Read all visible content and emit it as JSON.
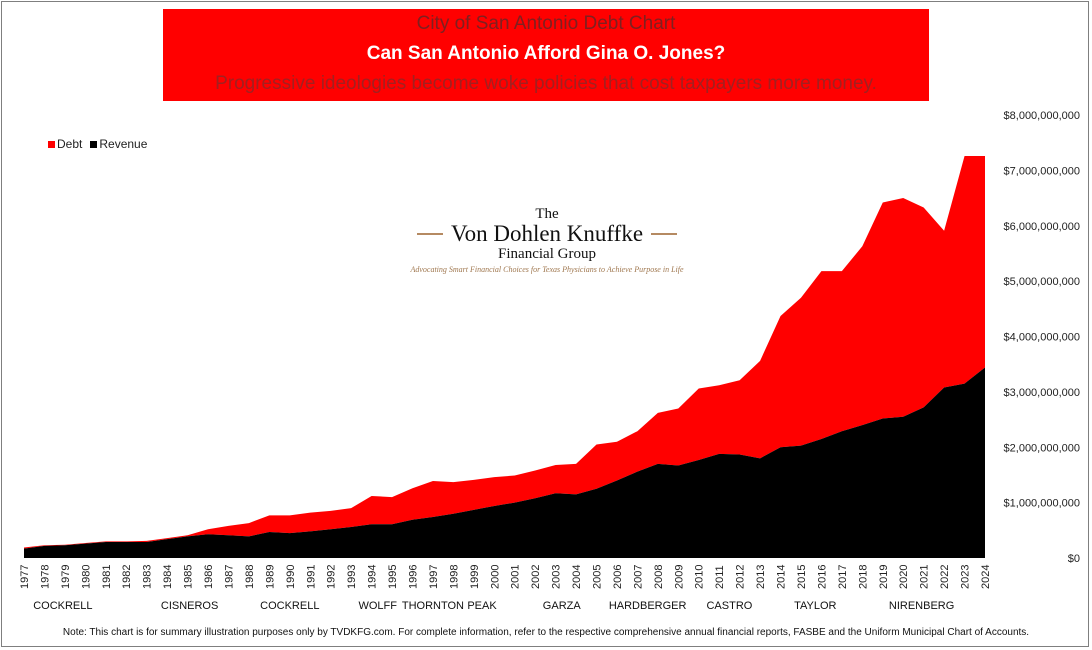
{
  "title_box": {
    "line1": "City of San Antonio Debt Chart",
    "line2": "Can San Antonio Afford Gina O. Jones?",
    "line3": "Progressive ideologies become woke policies that cost taxpayers more money."
  },
  "logo": {
    "line1": "The",
    "line2": "Von Dohlen Knuffke",
    "line3": "Financial Group",
    "tagline": "Advocating Smart Financial Choices for Texas Physicians to Achieve Purpose in Life"
  },
  "footnote": "Note: This chart is for summary illustration purposes only by TVDKFG.com. For complete information, refer to the respective comprehensive annual financial reports, FASBE and the Uniform Municipal Chart of Accounts.",
  "colors": {
    "debt": "#ff0000",
    "revenue": "#000000",
    "title_bg": "#ff0000"
  },
  "chart_data": {
    "type": "area",
    "stacked": true,
    "x": [
      1977,
      1978,
      1979,
      1980,
      1981,
      1982,
      1983,
      1984,
      1985,
      1986,
      1987,
      1988,
      1989,
      1990,
      1991,
      1992,
      1993,
      1994,
      1995,
      1996,
      1997,
      1998,
      1999,
      2000,
      2001,
      2002,
      2003,
      2004,
      2005,
      2006,
      2007,
      2008,
      2009,
      2010,
      2011,
      2012,
      2013,
      2014,
      2015,
      2016,
      2017,
      2018,
      2019,
      2020,
      2021,
      2022,
      2023,
      2024
    ],
    "x_tick_labels": [
      "1977",
      "1978",
      "1979",
      "1980",
      "1981",
      "1982",
      "1983",
      "1984",
      "1985",
      "1986",
      "1987",
      "1988",
      "1989",
      "1990",
      "1991",
      "1992",
      "1993",
      "1994",
      "1995",
      "1996",
      "1997",
      "1998",
      "1999",
      "2000",
      "2001",
      "2002",
      "2003",
      "2004",
      "2005",
      "2006",
      "2007",
      "2008",
      "2009",
      "2010",
      "2011",
      "2012",
      "2013",
      "2014",
      "2015",
      "2016",
      "2017",
      "2018",
      "2019",
      "2020",
      "2021",
      "2022",
      "2023",
      "2024"
    ],
    "series": [
      {
        "name": "Revenue",
        "color": "#000000",
        "values": [
          170000000,
          220000000,
          230000000,
          260000000,
          290000000,
          290000000,
          290000000,
          340000000,
          390000000,
          430000000,
          410000000,
          390000000,
          470000000,
          450000000,
          480000000,
          520000000,
          560000000,
          610000000,
          610000000,
          690000000,
          740000000,
          800000000,
          870000000,
          940000000,
          1000000000,
          1080000000,
          1170000000,
          1150000000,
          1250000000,
          1400000000,
          1560000000,
          1700000000,
          1670000000,
          1770000000,
          1880000000,
          1870000000,
          1800000000,
          2000000000,
          2030000000,
          2150000000,
          2290000000,
          2400000000,
          2520000000,
          2550000000,
          2720000000,
          3080000000,
          3150000000,
          3440000000
        ]
      },
      {
        "name": "Debt",
        "color": "#ff0000",
        "values": [
          20000000,
          10000000,
          10000000,
          10000000,
          10000000,
          10000000,
          20000000,
          20000000,
          20000000,
          90000000,
          170000000,
          240000000,
          300000000,
          320000000,
          340000000,
          330000000,
          340000000,
          510000000,
          490000000,
          570000000,
          650000000,
          570000000,
          540000000,
          520000000,
          490000000,
          500000000,
          510000000,
          550000000,
          800000000,
          700000000,
          730000000,
          920000000,
          1030000000,
          1290000000,
          1240000000,
          1340000000,
          1760000000,
          2370000000,
          2670000000,
          3030000000,
          2890000000,
          3230000000,
          3900000000,
          3950000000,
          3610000000,
          2830000000,
          4110000000,
          3820000000
        ]
      }
    ],
    "ylim": [
      0,
      8000000000
    ],
    "y_ticks": [
      0,
      1000000000,
      2000000000,
      3000000000,
      4000000000,
      5000000000,
      6000000000,
      7000000000,
      8000000000
    ],
    "y_tick_labels": [
      "$0",
      "$1,000,000,000",
      "$2,000,000,000",
      "$3,000,000,000",
      "$4,000,000,000",
      "$5,000,000,000",
      "$6,000,000,000",
      "$7,000,000,000",
      "$8,000,000,000"
    ],
    "y_axis_side": "right",
    "grid": false,
    "legend": {
      "position": "top-left",
      "entries": [
        "Debt",
        "Revenue"
      ]
    },
    "mayor_labels": [
      {
        "text": "COCKRELL",
        "x": 1978.9
      },
      {
        "text": "CISNEROS",
        "x": 1985.1
      },
      {
        "text": "COCKRELL",
        "x": 1990.0
      },
      {
        "text": "WOLFF",
        "x": 1994.3
      },
      {
        "text": "THORNTON",
        "x": 1997.0
      },
      {
        "text": "PEAK",
        "x": 1999.4
      },
      {
        "text": "GARZA",
        "x": 2003.3
      },
      {
        "text": "HARDBERGER",
        "x": 2007.5
      },
      {
        "text": "CASTRO",
        "x": 2011.5
      },
      {
        "text": "TAYLOR",
        "x": 2015.7
      },
      {
        "text": "NIRENBERG",
        "x": 2020.9
      }
    ]
  }
}
